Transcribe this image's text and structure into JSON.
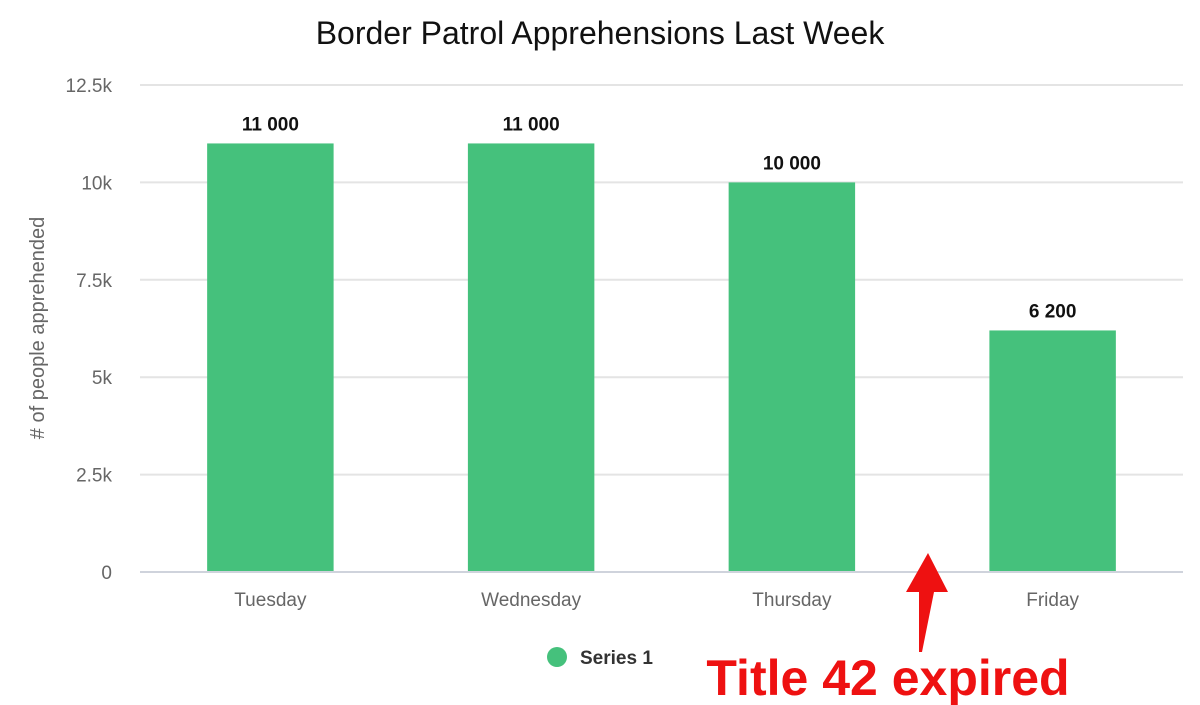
{
  "chart_data": {
    "type": "bar",
    "title": "Border Patrol Apprehensions Last Week",
    "ylabel": "# of people apprehended",
    "xlabel": "",
    "categories": [
      "Tuesday",
      "Wednesday",
      "Thursday",
      "Friday"
    ],
    "series": [
      {
        "name": "Series 1",
        "values": [
          11000,
          11000,
          10000,
          6200
        ]
      }
    ],
    "data_labels": [
      "11 000",
      "11 000",
      "10 000",
      "6 200"
    ],
    "ylim": [
      0,
      12500
    ],
    "yticks": [
      0,
      2500,
      5000,
      7500,
      10000,
      12500
    ],
    "ytick_labels": [
      "0",
      "2.5k",
      "5k",
      "7.5k",
      "10k",
      "12.5k"
    ],
    "grid": true,
    "legend_position": "bottom-center",
    "annotation": {
      "text": "Title 42 expired",
      "arrow": "up",
      "points_between": [
        "Thursday",
        "Friday"
      ]
    },
    "colors": {
      "bar": "#45c17c",
      "grid": "#e4e4e4",
      "axis": "#cfd3dc",
      "annotation": "#ee1111"
    }
  }
}
